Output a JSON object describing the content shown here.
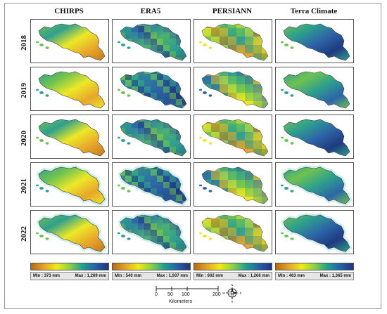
{
  "columns": [
    {
      "title": "CHIRPS",
      "legend_min": "Min : 373 mm",
      "legend_max": "Max : 1,269 mm",
      "gradient": [
        "#b56a12",
        "#e3a52a",
        "#f1ea17",
        "#8cd245",
        "#1fa08f",
        "#2761a8",
        "#20357e"
      ]
    },
    {
      "title": "ERA5",
      "legend_min": "Min : 540 mm",
      "legend_max": "Max : 1,937 mm",
      "gradient": [
        "#b56a12",
        "#e3a52a",
        "#f1ea17",
        "#8cd245",
        "#1fa08f",
        "#2761a8",
        "#20357e"
      ]
    },
    {
      "title": "PERSIANN",
      "legend_min": "Min : 602 mm",
      "legend_max": "Max : 1,266 mm",
      "gradient": [
        "#b56a12",
        "#e3a52a",
        "#f1ea17",
        "#8cd245",
        "#1fa08f",
        "#2761a8",
        "#20357e"
      ]
    },
    {
      "title": "Terra Climate",
      "legend_min": "Min : 463 mm",
      "legend_max": "Max : 1,365 mm",
      "gradient": [
        "#b56a12",
        "#e3a52a",
        "#f1ea17",
        "#8cd245",
        "#1fa08f",
        "#2761a8",
        "#20357e"
      ]
    }
  ],
  "rows": [
    "2018",
    "2019",
    "2020",
    "2021",
    "2022"
  ],
  "scale_bar": {
    "ticks": [
      "0",
      "50",
      "100",
      "200"
    ],
    "unit": "Kilometers"
  },
  "north_arrow": {
    "icon": "north-arrow-icon",
    "labels": [
      "N",
      "E",
      "S",
      "W"
    ]
  },
  "palette": {
    "brown": "#c27a1c",
    "orange": "#e8a62b",
    "yellow": "#ece828",
    "green": "#6fc251",
    "teal": "#2ea08c",
    "blue": "#2d66a8",
    "navy": "#1f3a80"
  }
}
